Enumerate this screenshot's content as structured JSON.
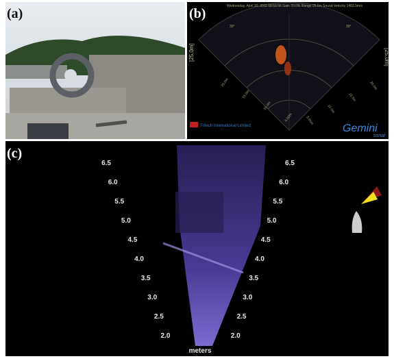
{
  "panels": [
    {
      "label": "(a)"
    },
    {
      "label": "(b)",
      "header": "Wednesday, April 20, 2011 08:59:56   Gain 70.0%   Range 25.0m   Sound Velocity 1483.0m/s",
      "range_left": "[25.0m]",
      "range_right": "[25.0m]",
      "angle_left": "30°",
      "angle_right": "30°",
      "ring_labels_left": [
        "20.0m",
        "15.0m",
        "10.0m",
        "5.00m"
      ],
      "ring_labels_right": [
        "20.0m",
        "15.0m",
        "10.0m",
        "5.00m"
      ],
      "logo_company": "Tritech International Limited",
      "logo_product": "Gemini",
      "logo_sub": "sonar"
    },
    {
      "label": "(c)",
      "scale_left": [
        "6.5",
        "6.0",
        "5.5",
        "5.0",
        "4.5",
        "4.0",
        "3.5",
        "3.0",
        "2.5",
        "2.0"
      ],
      "scale_right": [
        "6.5",
        "6.0",
        "5.5",
        "5.0",
        "4.5",
        "4.0",
        "3.5",
        "3.0",
        "2.5",
        "2.0"
      ],
      "unit": "meters"
    }
  ]
}
